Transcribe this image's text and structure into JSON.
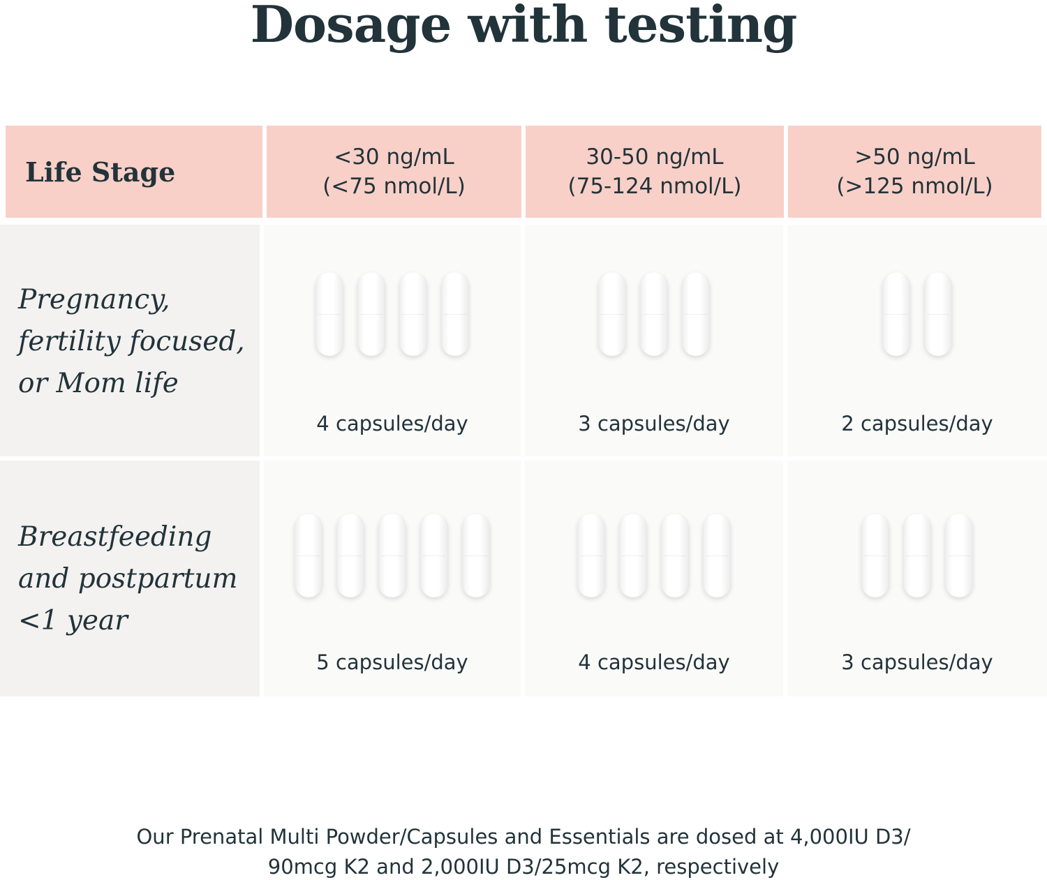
{
  "title": "Dosage with testing",
  "table": {
    "stage_header": "Life Stage",
    "columns": [
      {
        "line1": "<30 ng/mL",
        "line2": "(<75 nmol/L)"
      },
      {
        "line1": "30-50 ng/mL",
        "line2": "(75-124 nmol/L)"
      },
      {
        "line1": ">50 ng/mL",
        "line2": "(>125 nmol/L)"
      }
    ],
    "rows": [
      {
        "stage_lines": [
          "Pregnancy,",
          "fertility focused,",
          "or Mom life"
        ],
        "doses": [
          {
            "capsules": 4,
            "label": "4 capsules/day"
          },
          {
            "capsules": 3,
            "label": "3 capsules/day"
          },
          {
            "capsules": 2,
            "label": "2 capsules/day"
          }
        ]
      },
      {
        "stage_lines": [
          "Breastfeeding",
          "and postpartum",
          "<1 year"
        ],
        "doses": [
          {
            "capsules": 5,
            "label": "5 capsules/day"
          },
          {
            "capsules": 4,
            "label": "4 capsules/day"
          },
          {
            "capsules": 3,
            "label": "3 capsules/day"
          }
        ]
      }
    ]
  },
  "footnote": {
    "line1": "Our Prenatal Multi Powder/Capsules and Essentials are dosed at 4,000IU D3/",
    "line2": "90mcg K2 and 2,000IU D3/25mcg K2, respectively"
  },
  "colors": {
    "header_bg": "#f8d0c8",
    "stage_bg": "#f3f2f0",
    "cell_bg": "#fafaf9",
    "text": "#22333a"
  }
}
